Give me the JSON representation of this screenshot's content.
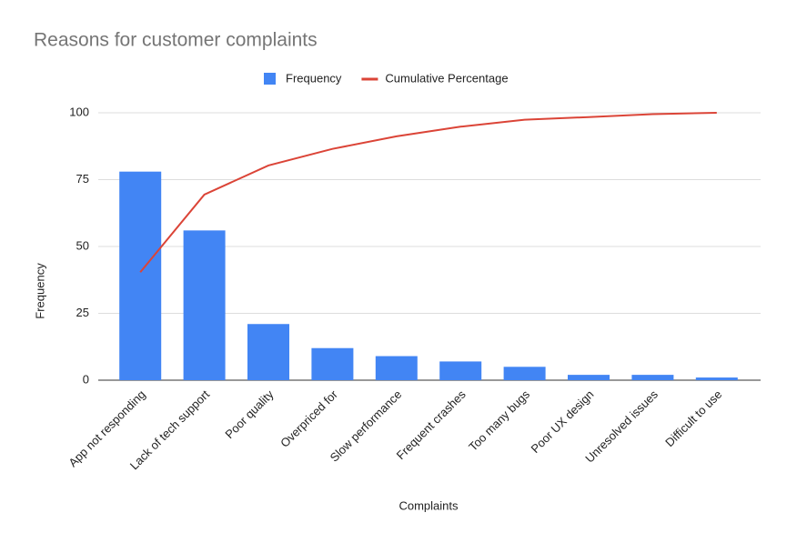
{
  "chart_data": {
    "type": "combo",
    "title": "Reasons for customer complaints",
    "x_label": "Complaints",
    "y_label": "Frequency",
    "categories": [
      "App not responding",
      "Lack of tech support",
      "Poor quality",
      "Overpriced for",
      "Slow performance",
      "Frequent crashes",
      "Too many bugs",
      "Poor UX design",
      "Unresolved issues",
      "Difficult to use"
    ],
    "series": [
      {
        "name": "Frequency",
        "type": "bar",
        "color": "#4285f4",
        "values": [
          78,
          56,
          21,
          12,
          9,
          7,
          5,
          2,
          2,
          1
        ]
      },
      {
        "name": "Cumulative Percentage",
        "type": "line",
        "color": "#db4437",
        "values": [
          40.4,
          69.4,
          80.3,
          86.5,
          91.2,
          94.8,
          97.4,
          98.4,
          99.5,
          100
        ]
      }
    ],
    "ylim": [
      0,
      100
    ],
    "yticks": [
      0,
      25,
      50,
      75,
      100
    ],
    "grid": true,
    "legend": "top"
  }
}
